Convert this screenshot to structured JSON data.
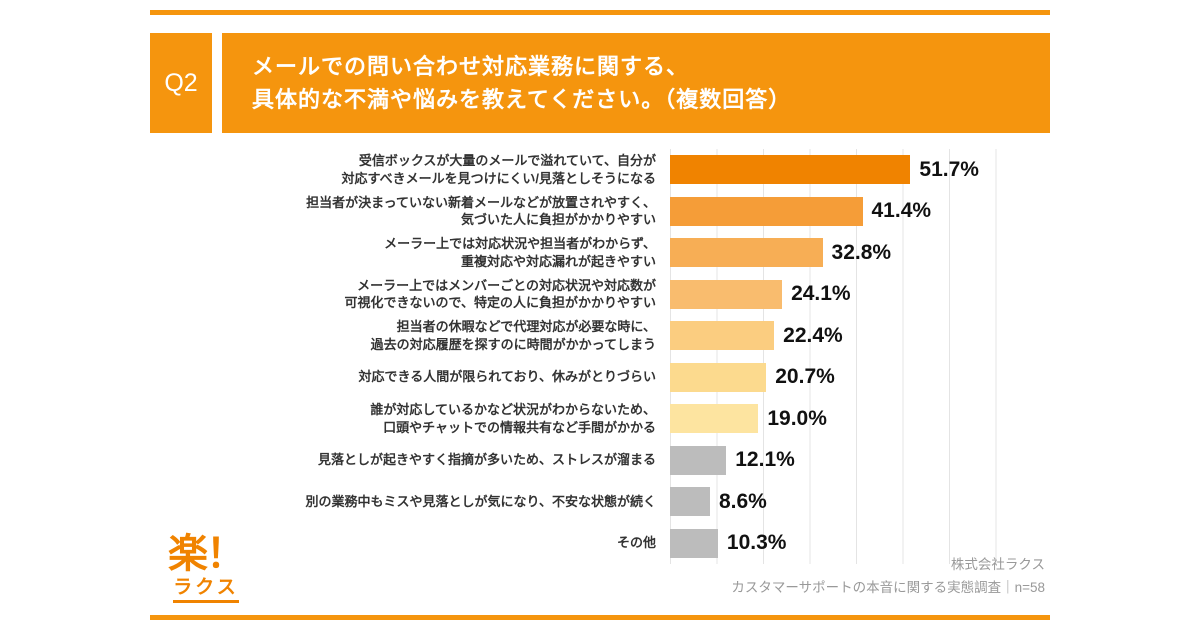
{
  "header": {
    "q_label": "Q2",
    "title_line1": "メールでの問い合わせ対応業務に関する、",
    "title_line2": "具体的な不満や悩みを教えてください。（複数回答）"
  },
  "chart_data": {
    "type": "bar",
    "orientation": "horizontal",
    "title": "メールでの問い合わせ対応業務に関する具体的な不満や悩み（複数回答）",
    "xlabel": "",
    "ylabel": "",
    "xlim": [
      0,
      80
    ],
    "grid": true,
    "gridline_interval": 10,
    "categories": [
      "受信ボックスが大量のメールで溢れていて、自分が\n対応すべきメールを見つけにくい/見落としそうになる",
      "担当者が決まっていない新着メールなどが放置されやすく、\n気づいた人に負担がかかりやすい",
      "メーラー上では対応状況や担当者がわからず、\n重複対応や対応漏れが起きやすい",
      "メーラー上ではメンバーごとの対応状況や対応数が\n可視化できないので、特定の人に負担がかかりやすい",
      "担当者の休暇などで代理対応が必要な時に、\n過去の対応履歴を探すのに時間がかかってしまう",
      "対応できる人間が限られており、休みがとりづらい",
      "誰が対応しているかなど状況がわからないため、\n口頭やチャットでの情報共有など手間がかかる",
      "見落としが起きやすく指摘が多いため、ストレスが溜まる",
      "別の業務中もミスや見落としが気になり、不安な状態が続く",
      "その他"
    ],
    "values": [
      51.7,
      41.4,
      32.8,
      24.1,
      22.4,
      20.7,
      19.0,
      12.1,
      8.6,
      10.3
    ],
    "value_labels": [
      "51.7%",
      "41.4%",
      "32.8%",
      "24.1%",
      "22.4%",
      "20.7%",
      "19.0%",
      "12.1%",
      "8.6%",
      "10.3%"
    ],
    "bar_colors": [
      "#F08300",
      "#F59D38",
      "#F7AE55",
      "#F9BC6E",
      "#FBCD80",
      "#FCDA8E",
      "#FDE4A0",
      "#BCBCBC",
      "#BCBCBC",
      "#BCBCBC"
    ],
    "legend": false
  },
  "footer": {
    "logo_main": "楽！",
    "logo_sub": "ラクス",
    "credit_line1": "株式会社ラクス",
    "credit_line2": "カスタマーサポートの本音に関する実態調査｜n=58"
  },
  "colors": {
    "accent_orange": "#F5950E",
    "top_bar_color": "#F08300",
    "gray_bar_color": "#BCBCBC",
    "gridline_color": "#E4E4E4",
    "credit_text_color": "#999999"
  }
}
